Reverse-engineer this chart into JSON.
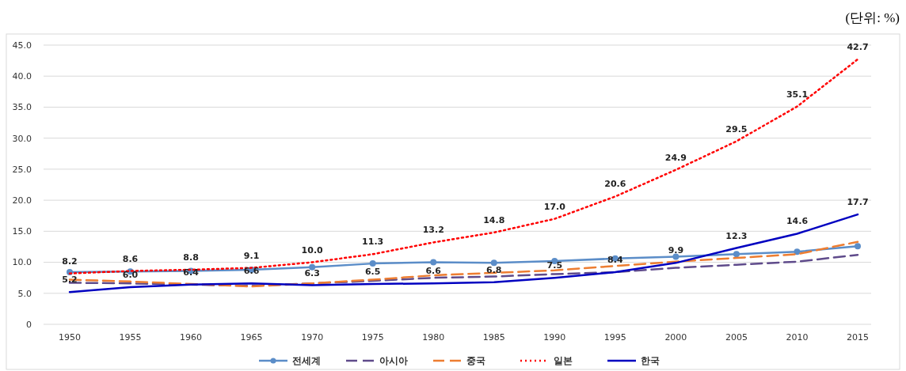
{
  "chart_data": {
    "type": "line",
    "categories": [
      "1950",
      "1955",
      "1960",
      "1965",
      "1970",
      "1975",
      "1980",
      "1985",
      "1990",
      "1995",
      "2000",
      "2005",
      "2010",
      "2015"
    ],
    "ylim": [
      0,
      45
    ],
    "yticks": [
      {
        "value": 0,
        "label": "0"
      },
      {
        "value": 5,
        "label": "5.0"
      },
      {
        "value": 10,
        "label": "10.0"
      },
      {
        "value": 15,
        "label": "15.0"
      },
      {
        "value": 20,
        "label": "20.0"
      },
      {
        "value": 25,
        "label": "25.0"
      },
      {
        "value": 30,
        "label": "30.0"
      },
      {
        "value": 35,
        "label": "35.0"
      },
      {
        "value": 40,
        "label": "40.0"
      },
      {
        "value": 45,
        "label": "45.0"
      }
    ],
    "grid": "y",
    "legend": "bottom",
    "annotations": [
      "(단위: %)"
    ],
    "series": [
      {
        "name": "전세계",
        "color": "#5b8dc8",
        "marker": "circle",
        "line_style": "solid",
        "values": [
          8.4,
          8.5,
          8.6,
          8.8,
          9.2,
          9.8,
          10.0,
          9.9,
          10.2,
          10.6,
          10.9,
          11.3,
          11.7,
          12.6
        ]
      },
      {
        "name": "아시아",
        "color": "#5f4b8b",
        "marker": "none",
        "line_style": "dashed",
        "values": [
          6.7,
          6.6,
          6.4,
          6.2,
          6.6,
          7.0,
          7.5,
          7.7,
          8.1,
          8.4,
          9.1,
          9.6,
          10.1,
          11.2
        ]
      },
      {
        "name": "중국",
        "color": "#ed7d31",
        "marker": "none",
        "line_style": "dashed",
        "values": [
          7.2,
          6.9,
          6.5,
          6.1,
          6.6,
          7.2,
          7.9,
          8.3,
          8.7,
          9.4,
          10.1,
          10.7,
          11.3,
          13.3
        ]
      },
      {
        "name": "일본",
        "color": "#ff0000",
        "marker": "none",
        "line_style": "dotted",
        "values": [
          8.2,
          8.6,
          8.8,
          9.1,
          10.0,
          11.3,
          13.2,
          14.8,
          17.0,
          20.6,
          24.9,
          29.5,
          35.1,
          42.7
        ],
        "value_labels": [
          "8.2",
          "8.6",
          "8.8",
          "9.1",
          "10.0",
          "11.3",
          "13.2",
          "14.8",
          "17.0",
          "20.6",
          "24.9",
          "29.5",
          "35.1",
          "42.7"
        ]
      },
      {
        "name": "한국",
        "color": "#0000c0",
        "marker": "none",
        "line_style": "solid",
        "values": [
          5.2,
          6.0,
          6.4,
          6.6,
          6.3,
          6.5,
          6.6,
          6.8,
          7.5,
          8.4,
          9.9,
          12.3,
          14.6,
          17.7
        ],
        "value_labels": [
          "5.2",
          "6.0",
          "6.4",
          "6.6",
          "6.3",
          "6.5",
          "6.6",
          "6.8",
          "7.5",
          "8.4",
          "9.9",
          "12.3",
          "14.6",
          "17.7"
        ]
      }
    ]
  }
}
